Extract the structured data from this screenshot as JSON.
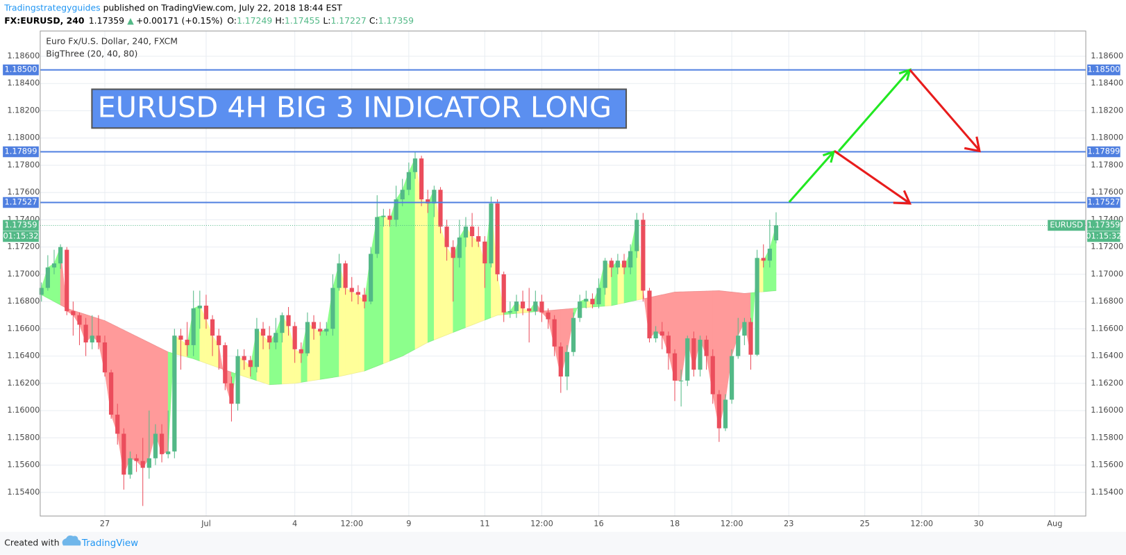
{
  "header": {
    "author": "Tradingstrategyguides",
    "published": " published on TradingView.com, July 22, 2018 18:44 EST",
    "symbol": "FX:EURUSD, 240",
    "last": "1.17359",
    "arrow": "▲",
    "change": "+0.00171 (+0.15%)",
    "o_label": "O:",
    "o": "1.17249",
    "h_label": "H:",
    "h": "1.17455",
    "l_label": "L:",
    "l": "1.17227",
    "c_label": "C:",
    "c": "1.17359"
  },
  "footer": {
    "created": "Created with",
    "brand": "TradingView"
  },
  "chart_data": {
    "type": "candlestick",
    "title": "Euro Fx/U.S. Dollar, 240, FXCM",
    "indicator": "BigThree (20, 40, 80)",
    "annotation": "EURUSD 4H BIG 3 INDICATOR LONG",
    "categories": [
      null,
      null,
      null,
      null,
      null,
      null,
      null,
      null,
      null,
      null,
      null,
      null,
      null,
      null,
      null,
      null,
      null,
      null,
      null,
      null,
      null,
      null,
      null,
      null,
      null,
      null,
      null,
      null,
      null,
      null,
      null,
      null,
      null,
      null,
      null,
      null,
      null,
      null,
      null,
      null,
      null,
      null,
      null,
      null,
      null,
      null,
      null,
      null,
      null,
      null,
      null,
      null,
      null,
      null,
      null,
      null,
      null,
      null,
      null,
      null,
      null,
      null,
      null,
      null,
      null,
      null,
      null,
      null,
      null,
      null,
      null,
      null,
      null,
      null,
      null,
      null,
      null,
      null,
      null,
      null,
      null,
      null,
      null,
      null,
      null,
      null,
      null,
      null,
      null,
      null,
      null,
      null,
      null,
      null,
      null,
      null,
      null,
      null,
      null,
      null,
      null,
      null,
      null,
      null,
      null,
      null,
      null,
      null,
      null,
      null,
      null,
      null,
      null,
      null,
      null,
      null,
      null
    ],
    "ohlc": {
      "open": [
        1.1685,
        1.169,
        1.1705,
        1.1708,
        1.1718,
        1.1673,
        1.167,
        1.1663,
        1.165,
        1.1655,
        1.165,
        1.1628,
        1.1597,
        1.1583,
        1.1553,
        1.1565,
        1.1563,
        1.1558,
        1.1565,
        1.1583,
        1.1568,
        1.157,
        1.1655,
        1.1652,
        1.1648,
        1.1675,
        1.1677,
        1.1667,
        1.1655,
        1.1648,
        1.162,
        1.1605,
        1.164,
        1.1637,
        1.1632,
        1.166,
        1.1655,
        1.165,
        1.1657,
        1.167,
        1.1662,
        1.1645,
        1.1642,
        1.1665,
        1.166,
        1.1658,
        1.166,
        1.169,
        1.1708,
        1.169,
        1.1687,
        1.1685,
        1.168,
        1.1715,
        1.1742,
        1.1743,
        1.174,
        1.1755,
        1.1762,
        1.1775,
        1.1785,
        1.1755,
        1.1752,
        1.1762,
        1.1735,
        1.172,
        1.1712,
        1.1727,
        1.1735,
        1.1728,
        1.1724,
        1.1708,
        1.1752,
        1.17,
        1.1672,
        1.1673,
        1.168,
        1.1675,
        1.1673,
        1.168,
        1.1672,
        1.1667,
        1.1647,
        1.1625,
        1.1643,
        1.1668,
        1.168,
        1.1682,
        1.1678,
        1.169,
        1.171,
        1.1705,
        1.171,
        1.1705,
        1.1717,
        1.174,
        1.1688,
        1.1653,
        1.1658,
        1.1655,
        1.1642,
        1.1622,
        1.1622,
        1.1653,
        1.163,
        1.1652,
        1.164,
        1.1612,
        1.1587,
        1.1608,
        1.164,
        1.1655,
        1.1665,
        1.1641,
        1.1712,
        1.171,
        1.17249
      ],
      "high": [
        1.1694,
        1.1714,
        1.1718,
        1.1722,
        1.172,
        1.168,
        1.1672,
        1.1668,
        1.167,
        1.167,
        1.1655,
        1.163,
        1.1605,
        1.1587,
        1.157,
        1.1568,
        1.158,
        1.16,
        1.159,
        1.159,
        1.16,
        1.166,
        1.166,
        1.1665,
        1.1688,
        1.1688,
        1.1685,
        1.167,
        1.166,
        1.165,
        1.1625,
        1.1645,
        1.1645,
        1.164,
        1.1668,
        1.1665,
        1.1662,
        1.1668,
        1.1672,
        1.1676,
        1.1665,
        1.165,
        1.1672,
        1.167,
        1.1665,
        1.1665,
        1.17,
        1.1715,
        1.171,
        1.1698,
        1.1692,
        1.169,
        1.172,
        1.1758,
        1.1748,
        1.1748,
        1.1765,
        1.177,
        1.1782,
        1.179,
        1.1787,
        1.1762,
        1.1765,
        1.1764,
        1.174,
        1.1725,
        1.174,
        1.1742,
        1.1745,
        1.1735,
        1.1728,
        1.1757,
        1.1755,
        1.1702,
        1.168,
        1.1685,
        1.1688,
        1.169,
        1.1688,
        1.1685,
        1.1675,
        1.167,
        1.165,
        1.1648,
        1.1672,
        1.1685,
        1.1688,
        1.1686,
        1.1697,
        1.1712,
        1.1712,
        1.1715,
        1.1715,
        1.1722,
        1.1745,
        1.1745,
        1.169,
        1.1662,
        1.1665,
        1.1658,
        1.1645,
        1.163,
        1.1655,
        1.1658,
        1.1655,
        1.1655,
        1.1645,
        1.1615,
        1.1612,
        1.1645,
        1.1668,
        1.1668,
        1.1668,
        1.1718,
        1.1722,
        1.174,
        1.17455
      ],
      "low": [
        1.168,
        1.1688,
        1.17,
        1.1704,
        1.167,
        1.1655,
        1.1648,
        1.164,
        1.1645,
        1.1645,
        1.1625,
        1.1594,
        1.1575,
        1.1542,
        1.155,
        1.1555,
        1.153,
        1.155,
        1.156,
        1.1562,
        1.1565,
        1.1565,
        1.163,
        1.164,
        1.164,
        1.166,
        1.166,
        1.164,
        1.163,
        1.1615,
        1.1592,
        1.16,
        1.163,
        1.1625,
        1.1628,
        1.1645,
        1.1645,
        1.1645,
        1.165,
        1.1655,
        1.1635,
        1.1635,
        1.164,
        1.1652,
        1.1655,
        1.1655,
        1.1655,
        1.1688,
        1.1685,
        1.168,
        1.1678,
        1.1675,
        1.1678,
        1.1712,
        1.1735,
        1.1735,
        1.1735,
        1.175,
        1.1758,
        1.177,
        1.175,
        1.1745,
        1.1742,
        1.173,
        1.171,
        1.168,
        1.1705,
        1.172,
        1.172,
        1.172,
        1.169,
        1.1705,
        1.1695,
        1.1665,
        1.1668,
        1.1668,
        1.167,
        1.165,
        1.167,
        1.1665,
        1.166,
        1.164,
        1.1613,
        1.1615,
        1.164,
        1.1665,
        1.1675,
        1.1675,
        1.1675,
        1.1685,
        1.1698,
        1.17,
        1.17,
        1.17,
        1.1712,
        1.168,
        1.165,
        1.165,
        1.1645,
        1.163,
        1.1607,
        1.1603,
        1.1618,
        1.1625,
        1.1625,
        1.163,
        1.1605,
        1.1577,
        1.1585,
        1.1605,
        1.1638,
        1.1648,
        1.163,
        1.164,
        1.1705,
        1.1705,
        1.17227
      ],
      "close": [
        1.169,
        1.1705,
        1.1708,
        1.172,
        1.1673,
        1.167,
        1.1663,
        1.165,
        1.1655,
        1.165,
        1.1628,
        1.1597,
        1.1583,
        1.1553,
        1.1565,
        1.1563,
        1.1558,
        1.1565,
        1.1583,
        1.1568,
        1.157,
        1.1655,
        1.1652,
        1.1648,
        1.1675,
        1.1677,
        1.1667,
        1.1655,
        1.1648,
        1.162,
        1.1605,
        1.164,
        1.1637,
        1.1632,
        1.166,
        1.1655,
        1.165,
        1.1657,
        1.167,
        1.1662,
        1.1645,
        1.1642,
        1.1665,
        1.166,
        1.1658,
        1.166,
        1.169,
        1.1708,
        1.169,
        1.1687,
        1.1685,
        1.168,
        1.1715,
        1.1742,
        1.1743,
        1.174,
        1.1755,
        1.1762,
        1.1775,
        1.1785,
        1.1755,
        1.1752,
        1.1762,
        1.1735,
        1.172,
        1.1712,
        1.1727,
        1.1735,
        1.1728,
        1.1724,
        1.1708,
        1.1752,
        1.17,
        1.1672,
        1.1673,
        1.168,
        1.1675,
        1.1673,
        1.168,
        1.1672,
        1.1667,
        1.1647,
        1.1625,
        1.1643,
        1.1668,
        1.168,
        1.1682,
        1.1678,
        1.169,
        1.171,
        1.1705,
        1.171,
        1.1705,
        1.1717,
        1.174,
        1.1688,
        1.1653,
        1.1658,
        1.1655,
        1.1642,
        1.1622,
        1.1622,
        1.1653,
        1.163,
        1.1652,
        1.164,
        1.1612,
        1.1587,
        1.1608,
        1.164,
        1.1655,
        1.1665,
        1.1641,
        1.1712,
        1.171,
        1.17188,
        1.17359
      ]
    },
    "up_color": "#53b987",
    "down_color": "#eb4d5c",
    "ribbon": {
      "x": [
        0,
        4,
        10,
        20,
        24,
        27,
        32,
        36,
        40,
        47,
        51,
        57,
        61,
        67,
        72,
        79,
        84,
        90,
        95,
        100,
        107,
        111,
        116
      ],
      "values": [
        1.1685,
        1.1675,
        1.1666,
        1.1643,
        1.1638,
        1.1633,
        1.1625,
        1.1619,
        1.162,
        1.1625,
        1.1629,
        1.164,
        1.165,
        1.1661,
        1.167,
        1.1673,
        1.1675,
        1.1677,
        1.1682,
        1.1687,
        1.1688,
        1.1686,
        1.1688
      ],
      "colors": {
        "up": "#8cff8c",
        "mid": "#ffff99",
        "down": "#ff9a9a"
      }
    },
    "xlim": [
      -0.2,
      164.9
    ],
    "xticks": [
      {
        "value": 10,
        "label": "27"
      },
      {
        "value": 26,
        "label": "Jul"
      },
      {
        "value": 40,
        "label": "4"
      },
      {
        "value": 49,
        "label": "12:00"
      },
      {
        "value": 58,
        "label": "9"
      },
      {
        "value": 70,
        "label": "11"
      },
      {
        "value": 79,
        "label": "12:00"
      },
      {
        "value": 88,
        "label": "16"
      },
      {
        "value": 100,
        "label": "18"
      },
      {
        "value": 109,
        "label": "12:00"
      },
      {
        "value": 118,
        "label": "23"
      },
      {
        "value": 130,
        "label": "25"
      },
      {
        "value": 139,
        "label": "12:00"
      },
      {
        "value": 148,
        "label": "30"
      },
      {
        "value": 160,
        "label": "Aug"
      }
    ],
    "ylim": [
      1.15226,
      1.18785
    ],
    "yticks": [
      {
        "value": 1.154,
        "label": "1.15400"
      },
      {
        "value": 1.156,
        "label": "1.15600"
      },
      {
        "value": 1.158,
        "label": "1.15800"
      },
      {
        "value": 1.16,
        "label": "1.16000"
      },
      {
        "value": 1.162,
        "label": "1.16200"
      },
      {
        "value": 1.164,
        "label": "1.16400"
      },
      {
        "value": 1.166,
        "label": "1.16600"
      },
      {
        "value": 1.168,
        "label": "1.16800"
      },
      {
        "value": 1.17,
        "label": "1.17000"
      },
      {
        "value": 1.172,
        "label": "1.17200"
      },
      {
        "value": 1.174,
        "label": "1.17400"
      },
      {
        "value": 1.176,
        "label": "1.17600"
      },
      {
        "value": 1.178,
        "label": "1.17800"
      },
      {
        "value": 1.18,
        "label": "1.18000"
      },
      {
        "value": 1.182,
        "label": "1.18200"
      },
      {
        "value": 1.184,
        "label": "1.18400"
      },
      {
        "value": 1.186,
        "label": "1.18600"
      }
    ],
    "grid": true,
    "levels": [
      {
        "value": 1.185,
        "label": "1.18500"
      },
      {
        "value": 1.17899,
        "label": "1.17899"
      },
      {
        "value": 1.17527,
        "label": "1.17527"
      }
    ],
    "level_color": "#4f7fe0",
    "price_line": {
      "value": 1.17359,
      "label": "1.17359",
      "name": "EURUSD",
      "countdown": "01:15:32"
    }
  }
}
